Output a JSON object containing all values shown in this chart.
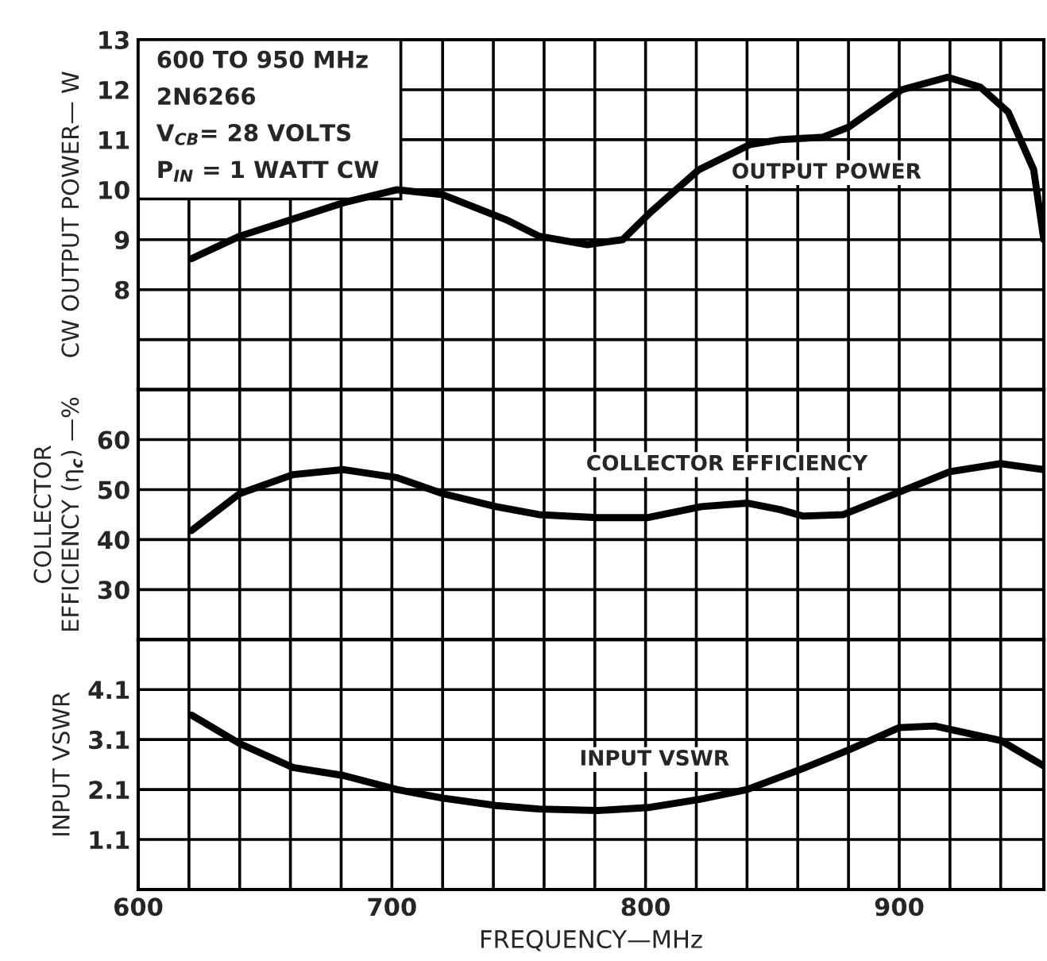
{
  "chart_data": [
    {
      "type": "line",
      "ylabel": "CW OUTPUT POWER— W",
      "annotations": [
        "600 TO 950 MHz",
        "2N6266",
        "V$_{CB}$= 28 VOLTS",
        "P$_{IN}$ = 1 WATT CW"
      ],
      "x": [
        621,
        640,
        681,
        702,
        720,
        745,
        758,
        777,
        791,
        802,
        821,
        841,
        853,
        870,
        880,
        901,
        919,
        932,
        943,
        953,
        957
      ],
      "series": [
        {
          "name": "OUTPUT POWER",
          "color": "#000000",
          "values": [
            8.62,
            9.07,
            9.74,
            10.0,
            9.9,
            9.4,
            9.07,
            8.9,
            9.0,
            9.55,
            10.4,
            10.9,
            11.0,
            11.05,
            11.25,
            12.0,
            12.25,
            12.05,
            11.55,
            10.4,
            9.0
          ]
        }
      ],
      "xlim": [
        600,
        957
      ],
      "xticks": [
        600,
        {
          "value": 620,
          "label": null
        },
        {
          "value": 640,
          "label": null
        },
        {
          "value": 660,
          "label": null
        },
        {
          "value": 680,
          "label": null
        },
        700,
        {
          "value": 720,
          "label": null
        },
        {
          "value": 740,
          "label": null
        },
        {
          "value": 760,
          "label": null
        },
        {
          "value": 780,
          "label": null
        },
        800,
        {
          "value": 820,
          "label": null
        },
        {
          "value": 840,
          "label": null
        },
        {
          "value": 860,
          "label": null
        },
        {
          "value": 880,
          "label": null
        },
        900,
        {
          "value": 920,
          "label": null
        },
        {
          "value": 940,
          "label": null
        }
      ],
      "ylim": [
        6,
        13
      ],
      "yticks": [
        {
          "value": 7,
          "label": null
        },
        8,
        9,
        10,
        11,
        12,
        13
      ],
      "grid": true,
      "tick_labels": "y",
      "legend": false,
      "line_style": "solid"
    },
    {
      "type": "line",
      "ylabel": "COLLECTOR\nEFFICIENCY (η$_{c}$) —%",
      "x": [
        621,
        640,
        661,
        681,
        702,
        720,
        741,
        758,
        781,
        801,
        822,
        840,
        853,
        862,
        878,
        900,
        920,
        940,
        957
      ],
      "series": [
        {
          "name": "COLLECTOR EFFICIENCY",
          "color": "#000000",
          "values": [
            41.8,
            49.2,
            53.0,
            54.0,
            52.4,
            49.2,
            46.6,
            45.0,
            44.4,
            44.4,
            46.6,
            47.3,
            46.0,
            44.7,
            45.0,
            49.5,
            53.6,
            55.2,
            54.0
          ]
        }
      ],
      "xlim": [
        600,
        957
      ],
      "xticks": [
        600,
        {
          "value": 620,
          "label": null
        },
        {
          "value": 640,
          "label": null
        },
        {
          "value": 660,
          "label": null
        },
        {
          "value": 680,
          "label": null
        },
        700,
        {
          "value": 720,
          "label": null
        },
        {
          "value": 740,
          "label": null
        },
        {
          "value": 760,
          "label": null
        },
        {
          "value": 780,
          "label": null
        },
        800,
        {
          "value": 820,
          "label": null
        },
        {
          "value": 840,
          "label": null
        },
        {
          "value": 860,
          "label": null
        },
        {
          "value": 880,
          "label": null
        },
        900,
        {
          "value": 920,
          "label": null
        },
        {
          "value": 940,
          "label": null
        }
      ],
      "ylim": [
        20,
        70
      ],
      "yticks": [
        30,
        40,
        50,
        60
      ],
      "grid": true,
      "tick_labels": "y",
      "legend": false,
      "line_style": "solid"
    },
    {
      "type": "line",
      "ylabel": "INPUT VSWR",
      "xlabel": "FREQUENCY—MHz",
      "x": [
        621,
        640,
        661,
        681,
        702,
        720,
        741,
        758,
        781,
        801,
        821,
        840,
        861,
        880,
        900,
        914,
        940,
        957
      ],
      "series": [
        {
          "name": "INPUT VSWR",
          "color": "#000000",
          "values": [
            3.59,
            3.02,
            2.54,
            2.38,
            2.1,
            1.93,
            1.78,
            1.71,
            1.68,
            1.74,
            1.9,
            2.1,
            2.5,
            2.89,
            3.34,
            3.37,
            3.08,
            2.57
          ]
        }
      ],
      "xlim": [
        600,
        957
      ],
      "xticks": [
        600,
        {
          "value": 620,
          "label": null
        },
        {
          "value": 640,
          "label": null
        },
        {
          "value": 660,
          "label": null
        },
        {
          "value": 680,
          "label": null
        },
        700,
        {
          "value": 720,
          "label": null
        },
        {
          "value": 740,
          "label": null
        },
        {
          "value": 760,
          "label": null
        },
        {
          "value": 780,
          "label": null
        },
        800,
        {
          "value": 820,
          "label": null
        },
        {
          "value": 840,
          "label": null
        },
        {
          "value": 860,
          "label": null
        },
        {
          "value": 880,
          "label": null
        },
        900,
        {
          "value": 920,
          "label": null
        },
        {
          "value": 940,
          "label": null
        }
      ],
      "ylim": [
        0.1,
        5.1
      ],
      "yticks": [
        1.1,
        2.1,
        3.1,
        4.1
      ],
      "grid": true,
      "legend": false,
      "line_style": "solid"
    }
  ]
}
